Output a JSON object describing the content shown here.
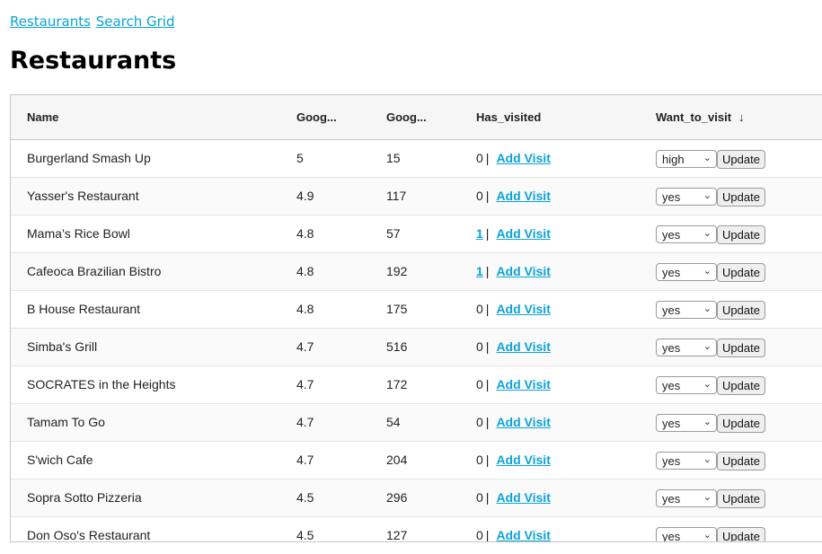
{
  "nav": {
    "restaurants": "Restaurants",
    "search_grid": "Search Grid"
  },
  "page_title": "Restaurants",
  "columns": [
    "Name",
    "Goog...",
    "Goog...",
    "Has_visited",
    "Want_to_visit"
  ],
  "sort_icon": "↓",
  "add_visit_label": "Add Visit",
  "update_label": "Update",
  "rows": [
    {
      "name": "Burgerland Smash Up",
      "rating": "5",
      "reviews": "15",
      "visited": "0",
      "visited_link": false,
      "want": "high"
    },
    {
      "name": "Yasser's Restaurant",
      "rating": "4.9",
      "reviews": "117",
      "visited": "0",
      "visited_link": false,
      "want": "yes"
    },
    {
      "name": "Mama’s Rice Bowl",
      "rating": "4.8",
      "reviews": "57",
      "visited": "1",
      "visited_link": true,
      "want": "yes"
    },
    {
      "name": "Cafeoca Brazilian Bistro",
      "rating": "4.8",
      "reviews": "192",
      "visited": "1",
      "visited_link": true,
      "want": "yes"
    },
    {
      "name": "B House Restaurant",
      "rating": "4.8",
      "reviews": "175",
      "visited": "0",
      "visited_link": false,
      "want": "yes"
    },
    {
      "name": "Simba's Grill",
      "rating": "4.7",
      "reviews": "516",
      "visited": "0",
      "visited_link": false,
      "want": "yes"
    },
    {
      "name": "SOCRATES in the Heights",
      "rating": "4.7",
      "reviews": "172",
      "visited": "0",
      "visited_link": false,
      "want": "yes"
    },
    {
      "name": "Tamam To Go",
      "rating": "4.7",
      "reviews": "54",
      "visited": "0",
      "visited_link": false,
      "want": "yes"
    },
    {
      "name": "S'wich Cafe",
      "rating": "4.7",
      "reviews": "204",
      "visited": "0",
      "visited_link": false,
      "want": "yes"
    },
    {
      "name": "Sopra Sotto Pizzeria",
      "rating": "4.5",
      "reviews": "296",
      "visited": "0",
      "visited_link": false,
      "want": "yes"
    },
    {
      "name": "Don Oso's Restaurant",
      "rating": "4.5",
      "reviews": "127",
      "visited": "0",
      "visited_link": false,
      "want": "yes"
    }
  ]
}
